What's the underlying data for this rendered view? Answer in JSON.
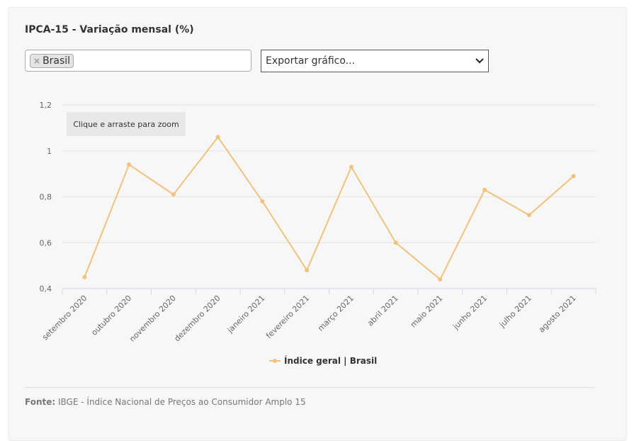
{
  "title": "IPCA-15 - Variação mensal (%)",
  "filter": {
    "chips": [
      "Brasil"
    ],
    "remove_symbol": "×"
  },
  "export": {
    "label": "Exportar gráfico...",
    "arrow": "chevron-down-icon"
  },
  "zoom_hint": "Clique e arraste para zoom",
  "source": {
    "label": "Fonte:",
    "text": "IBGE - Índice Nacional de Preços ao Consumidor Amplo 15"
  },
  "colors": {
    "line": "#f2c27a",
    "grid": "#e6e6e6",
    "axis": "#ccd6eb",
    "text": "#666666"
  },
  "chart_data": {
    "type": "line",
    "categories": [
      "setembro 2020",
      "outubro 2020",
      "novembro 2020",
      "dezembro 2020",
      "janeiro 2021",
      "fevereiro 2021",
      "março 2021",
      "abril 2021",
      "maio 2021",
      "junho 2021",
      "julho 2021",
      "agosto 2021"
    ],
    "series": [
      {
        "name": "Índice geral | Brasil",
        "values": [
          0.45,
          0.94,
          0.81,
          1.06,
          0.78,
          0.48,
          0.93,
          0.6,
          0.44,
          0.83,
          0.72,
          0.89
        ]
      }
    ],
    "yticks": [
      "0,4",
      "0,6",
      "0,8",
      "1",
      "1,2"
    ],
    "ytick_values": [
      0.4,
      0.6,
      0.8,
      1.0,
      1.2
    ],
    "ylim": [
      0.4,
      1.2
    ],
    "grid": true,
    "legend_position": "bottom"
  }
}
